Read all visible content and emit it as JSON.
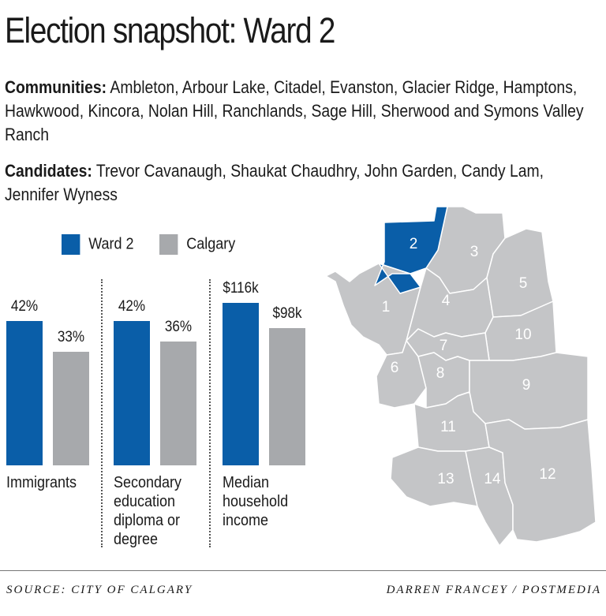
{
  "title": "Election snapshot: Ward 2",
  "communities": {
    "label": "Communities:",
    "text": "Ambleton, Arbour Lake, Citadel, Evanston, Glacier Ridge, Hamptons, Hawkwood, Kincora, Nolan Hill, Ranchlands, Sage Hill, Sherwood and Symons Valley Ranch"
  },
  "candidates": {
    "label": "Candidates:",
    "text": "Trevor Cavanaugh, Shaukat Chaudhry, John Garden, Candy Lam, Jennifer Wyness"
  },
  "colors": {
    "ward": "#0a5ea8",
    "city": "#a7a9ac",
    "map_fill": "#c4c5c7",
    "map_highlight": "#0a5ea8"
  },
  "chart_data": {
    "type": "bar",
    "legend_position": "top",
    "series": [
      {
        "name": "Ward 2",
        "color": "#0a5ea8",
        "values": [
          42,
          42,
          116
        ],
        "labels": [
          "42%",
          "42%",
          "$116k"
        ]
      },
      {
        "name": "Calgary",
        "color": "#a7a9ac",
        "values": [
          33,
          36,
          98
        ],
        "labels": [
          "33%",
          "36%",
          "$98k"
        ]
      }
    ],
    "categories": [
      {
        "label": "Immigrants",
        "lines": [
          "Immigrants"
        ],
        "unit": "percent"
      },
      {
        "label": "Secondary education diploma or degree",
        "lines": [
          "Secondary",
          "education",
          "diploma or",
          "degree"
        ],
        "unit": "percent"
      },
      {
        "label": "Median household income",
        "lines": [
          "Median",
          "household",
          "income"
        ],
        "unit": "thousand dollars"
      }
    ]
  },
  "map": {
    "highlighted_ward": "2",
    "wards": [
      "1",
      "2",
      "3",
      "4",
      "5",
      "6",
      "7",
      "8",
      "9",
      "10",
      "11",
      "12",
      "13",
      "14"
    ]
  },
  "footer": {
    "source": "SOURCE: CITY OF CALGARY",
    "credit": "DARREN FRANCEY / POSTMEDIA"
  }
}
